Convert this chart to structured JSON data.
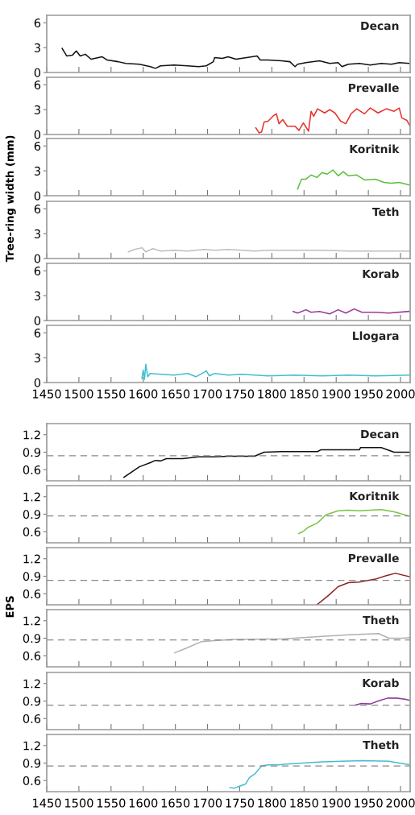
{
  "chart_data": [
    {
      "type": "line",
      "title": "Decan",
      "tick_labels": "y",
      "xlim": [
        1450,
        2015
      ],
      "xticks": [
        1450,
        1500,
        1550,
        1600,
        1650,
        1700,
        1750,
        1800,
        1850,
        1900,
        1950,
        2000
      ],
      "ylim": [
        0,
        6.9
      ],
      "yticks": [
        0,
        3,
        6
      ],
      "x": [
        1474,
        1481,
        1490,
        1496,
        1502,
        1510,
        1519,
        1536,
        1544,
        1561,
        1573,
        1594,
        1611,
        1619,
        1627,
        1648,
        1669,
        1686,
        1698,
        1709,
        1711,
        1723,
        1732,
        1744,
        1761,
        1777,
        1782,
        1794,
        1815,
        1828,
        1836,
        1840,
        1853,
        1874,
        1890,
        1903,
        1909,
        1919,
        1936,
        1953,
        1970,
        1986,
        1998,
        2013
      ],
      "series": [
        {
          "color": "#111111",
          "values": [
            2.9,
            2.0,
            2.1,
            2.6,
            2.0,
            2.2,
            1.6,
            1.9,
            1.5,
            1.3,
            1.1,
            1.0,
            0.7,
            0.5,
            0.8,
            0.9,
            0.8,
            0.7,
            0.8,
            1.3,
            1.8,
            1.7,
            1.9,
            1.6,
            1.8,
            2.0,
            1.5,
            1.5,
            1.4,
            1.3,
            0.7,
            1.0,
            1.2,
            1.4,
            1.1,
            1.2,
            0.7,
            1.0,
            1.1,
            0.9,
            1.1,
            1.0,
            1.2,
            1.1
          ]
        }
      ]
    },
    {
      "type": "line",
      "title": "Prevalle",
      "tick_labels": "y",
      "xlim": [
        1450,
        2015
      ],
      "xticks": [
        1450,
        1500,
        1550,
        1600,
        1650,
        1700,
        1750,
        1800,
        1850,
        1900,
        1950,
        2000
      ],
      "ylim": [
        0,
        6.9
      ],
      "yticks": [
        0,
        3,
        6
      ],
      "x": [
        1775,
        1780,
        1784,
        1788,
        1794,
        1803,
        1807,
        1811,
        1817,
        1824,
        1836,
        1842,
        1849,
        1853,
        1857,
        1861,
        1865,
        1871,
        1882,
        1890,
        1898,
        1907,
        1915,
        1923,
        1932,
        1944,
        1953,
        1965,
        1978,
        1990,
        1998,
        2002,
        2010,
        2015
      ],
      "series": [
        {
          "color": "#e8312a",
          "values": [
            0.8,
            0.2,
            0.3,
            1.5,
            1.6,
            2.3,
            2.5,
            1.3,
            1.8,
            1.0,
            1.0,
            0.5,
            1.4,
            0.9,
            0.4,
            2.8,
            2.2,
            3.1,
            2.6,
            3.0,
            2.6,
            1.6,
            1.3,
            2.5,
            3.1,
            2.5,
            3.2,
            2.6,
            3.1,
            2.8,
            3.2,
            2.0,
            1.7,
            1.0
          ]
        }
      ]
    },
    {
      "type": "line",
      "title": "Koritnik",
      "tick_labels": "y",
      "xlim": [
        1450,
        2015
      ],
      "xticks": [
        1450,
        1500,
        1550,
        1600,
        1650,
        1700,
        1750,
        1800,
        1850,
        1900,
        1950,
        2000
      ],
      "ylim": [
        0,
        6.9
      ],
      "yticks": [
        0,
        3,
        6
      ],
      "x": [
        1840,
        1846,
        1853,
        1861,
        1870,
        1878,
        1886,
        1895,
        1903,
        1911,
        1919,
        1932,
        1944,
        1961,
        1974,
        1986,
        1998,
        2013
      ],
      "series": [
        {
          "color": "#5cbf3c",
          "values": [
            0.8,
            2.0,
            2.0,
            2.5,
            2.2,
            2.8,
            2.6,
            3.1,
            2.4,
            2.9,
            2.4,
            2.5,
            1.9,
            2.0,
            1.6,
            1.5,
            1.6,
            1.3
          ]
        }
      ]
    },
    {
      "type": "line",
      "title": "Teth",
      "ylabel": "Tree-ring width (mm)",
      "tick_labels": "y",
      "xlim": [
        1450,
        2015
      ],
      "xticks": [
        1450,
        1500,
        1550,
        1600,
        1650,
        1700,
        1750,
        1800,
        1850,
        1900,
        1950,
        2000
      ],
      "ylim": [
        0,
        6.9
      ],
      "yticks": [
        0,
        3,
        6
      ],
      "x": [
        1577,
        1586,
        1598,
        1604,
        1615,
        1627,
        1648,
        1669,
        1694,
        1711,
        1732,
        1753,
        1773,
        1794,
        1836,
        1878,
        1919,
        1961,
        2013
      ],
      "series": [
        {
          "color": "#c4bcba",
          "values": [
            0.8,
            1.1,
            1.3,
            0.8,
            1.2,
            0.9,
            1.0,
            0.9,
            1.1,
            1.0,
            1.1,
            1.0,
            0.9,
            1.0,
            1.0,
            1.0,
            0.9,
            0.9,
            0.9
          ]
        }
      ]
    },
    {
      "type": "line",
      "title": "Korab",
      "tick_labels": "y",
      "xlim": [
        1450,
        2015
      ],
      "xticks": [
        1450,
        1500,
        1550,
        1600,
        1650,
        1700,
        1750,
        1800,
        1850,
        1900,
        1950,
        2000
      ],
      "ylim": [
        0,
        6.9
      ],
      "yticks": [
        0,
        3,
        6
      ],
      "x": [
        1833,
        1840,
        1853,
        1861,
        1874,
        1890,
        1903,
        1915,
        1928,
        1940,
        1961,
        1982,
        2013
      ],
      "series": [
        {
          "color": "#9b3a9b",
          "values": [
            1.1,
            0.9,
            1.3,
            1.0,
            1.1,
            0.8,
            1.3,
            0.9,
            1.4,
            1.0,
            1.0,
            0.9,
            1.1
          ]
        }
      ]
    },
    {
      "type": "line",
      "title": "Llogara",
      "xlim": [
        1450,
        2015
      ],
      "xticks": [
        1450,
        1500,
        1550,
        1600,
        1650,
        1700,
        1750,
        1800,
        1850,
        1900,
        1950,
        2000
      ],
      "ylim": [
        0,
        6.9
      ],
      "yticks": [
        0,
        3,
        6
      ],
      "x": [
        1598,
        1600,
        1602,
        1604,
        1607,
        1611,
        1627,
        1648,
        1669,
        1682,
        1698,
        1703,
        1711,
        1732,
        1753,
        1794,
        1836,
        1878,
        1919,
        1961,
        2013
      ],
      "series": [
        {
          "color": "#3fbfcf",
          "values": [
            0.5,
            1.5,
            0.4,
            2.2,
            0.7,
            1.1,
            1.0,
            0.9,
            1.1,
            0.7,
            1.4,
            0.8,
            1.1,
            0.9,
            1.0,
            0.8,
            0.9,
            0.8,
            0.9,
            0.8,
            0.9
          ]
        }
      ]
    },
    {
      "type": "line",
      "title": "Decan",
      "tick_labels": "y",
      "xlim": [
        1450,
        2015
      ],
      "xticks": [
        1450,
        1500,
        1550,
        1600,
        1650,
        1700,
        1750,
        1800,
        1850,
        1900,
        1950,
        2000
      ],
      "ylim": [
        0.41,
        1.39
      ],
      "yticks": [
        0.6,
        0.9,
        1.2
      ],
      "ref_lines": [
        {
          "axis": "y",
          "value": 0.84,
          "color": "#888888",
          "line_style": "dashed"
        }
      ],
      "x": [
        1570,
        1594,
        1611,
        1619,
        1627,
        1636,
        1661,
        1686,
        1711,
        1732,
        1773,
        1788,
        1815,
        1871,
        1876,
        1936,
        1938,
        1970,
        1990,
        2015
      ],
      "series": [
        {
          "color": "#111111",
          "values": [
            0.47,
            0.65,
            0.72,
            0.76,
            0.75,
            0.79,
            0.79,
            0.82,
            0.82,
            0.83,
            0.83,
            0.9,
            0.91,
            0.91,
            0.94,
            0.94,
            0.98,
            0.98,
            0.9,
            0.9
          ]
        }
      ]
    },
    {
      "type": "line",
      "title": "Koritnik",
      "tick_labels": "y",
      "xlim": [
        1450,
        2015
      ],
      "xticks": [
        1450,
        1500,
        1550,
        1600,
        1650,
        1700,
        1750,
        1800,
        1850,
        1900,
        1950,
        2000
      ],
      "ylim": [
        0.41,
        1.39
      ],
      "yticks": [
        0.6,
        0.9,
        1.2
      ],
      "ref_lines": [
        {
          "axis": "y",
          "value": 0.87,
          "color": "#888888",
          "line_style": "dashed"
        }
      ],
      "x": [
        1842,
        1848,
        1857,
        1871,
        1884,
        1903,
        1919,
        1936,
        1970,
        1990,
        2013
      ],
      "series": [
        {
          "color": "#7cc242",
          "values": [
            0.57,
            0.6,
            0.68,
            0.75,
            0.89,
            0.96,
            0.97,
            0.96,
            0.98,
            0.94,
            0.87
          ]
        }
      ]
    },
    {
      "type": "line",
      "title": "Prevalle",
      "tick_labels": "y",
      "xlim": [
        1450,
        2015
      ],
      "xticks": [
        1450,
        1500,
        1550,
        1600,
        1650,
        1700,
        1750,
        1800,
        1850,
        1900,
        1950,
        2000
      ],
      "ylim": [
        0.41,
        1.39
      ],
      "yticks": [
        0.6,
        0.9,
        1.2
      ],
      "ref_lines": [
        {
          "axis": "y",
          "value": 0.83,
          "color": "#888888",
          "line_style": "dashed"
        }
      ],
      "x": [
        1870,
        1888,
        1903,
        1919,
        1936,
        1961,
        1978,
        1992,
        2015
      ],
      "series": [
        {
          "color": "#8b2323",
          "values": [
            0.41,
            0.57,
            0.72,
            0.79,
            0.8,
            0.85,
            0.91,
            0.95,
            0.89
          ]
        }
      ]
    },
    {
      "type": "line",
      "title": "Theth",
      "ylabel": "EPS",
      "tick_labels": "y",
      "xlim": [
        1450,
        2015
      ],
      "xticks": [
        1450,
        1500,
        1550,
        1600,
        1650,
        1700,
        1750,
        1800,
        1850,
        1900,
        1950,
        2000
      ],
      "ylim": [
        0.41,
        1.39
      ],
      "yticks": [
        0.6,
        0.9,
        1.2
      ],
      "ref_lines": [
        {
          "axis": "y",
          "value": 0.87,
          "color": "#888888",
          "line_style": "dashed"
        }
      ],
      "x": [
        1649,
        1665,
        1690,
        1711,
        1740,
        1819,
        1878,
        1919,
        1966,
        1982,
        2003,
        2015
      ],
      "series": [
        {
          "color": "#b0b0b0",
          "values": [
            0.65,
            0.72,
            0.84,
            0.86,
            0.88,
            0.89,
            0.93,
            0.96,
            0.98,
            0.9,
            0.9,
            0.91
          ]
        }
      ]
    },
    {
      "type": "line",
      "title": "Korab",
      "tick_labels": "y",
      "xlim": [
        1450,
        2015
      ],
      "xticks": [
        1450,
        1500,
        1550,
        1600,
        1650,
        1700,
        1750,
        1800,
        1850,
        1900,
        1950,
        2000
      ],
      "ylim": [
        0.41,
        1.39
      ],
      "yticks": [
        0.6,
        0.9,
        1.2
      ],
      "ref_lines": [
        {
          "axis": "y",
          "value": 0.83,
          "color": "#888888",
          "line_style": "dashed"
        }
      ],
      "x": [
        1930,
        1939,
        1953,
        1965,
        1980,
        1994,
        2007,
        2015
      ],
      "series": [
        {
          "color": "#8e3c9c",
          "values": [
            0.83,
            0.86,
            0.85,
            0.9,
            0.95,
            0.95,
            0.93,
            0.91
          ]
        }
      ]
    },
    {
      "type": "line",
      "title": "Theth",
      "xlim": [
        1450,
        2015
      ],
      "xticks": [
        1450,
        1500,
        1550,
        1600,
        1650,
        1700,
        1750,
        1800,
        1850,
        1900,
        1950,
        2000
      ],
      "ylim": [
        0.41,
        1.39
      ],
      "yticks": [
        0.6,
        0.9,
        1.2
      ],
      "ref_lines": [
        {
          "axis": "y",
          "value": 0.85,
          "color": "#888888",
          "line_style": "dashed"
        }
      ],
      "x": [
        1735,
        1742,
        1749,
        1759,
        1765,
        1774,
        1784,
        1794,
        1811,
        1819,
        1878,
        1940,
        1982,
        1998,
        2015
      ],
      "series": [
        {
          "color": "#45bcd0",
          "values": [
            0.48,
            0.47,
            0.5,
            0.54,
            0.65,
            0.72,
            0.85,
            0.87,
            0.87,
            0.88,
            0.92,
            0.94,
            0.93,
            0.9,
            0.87
          ]
        }
      ]
    }
  ]
}
